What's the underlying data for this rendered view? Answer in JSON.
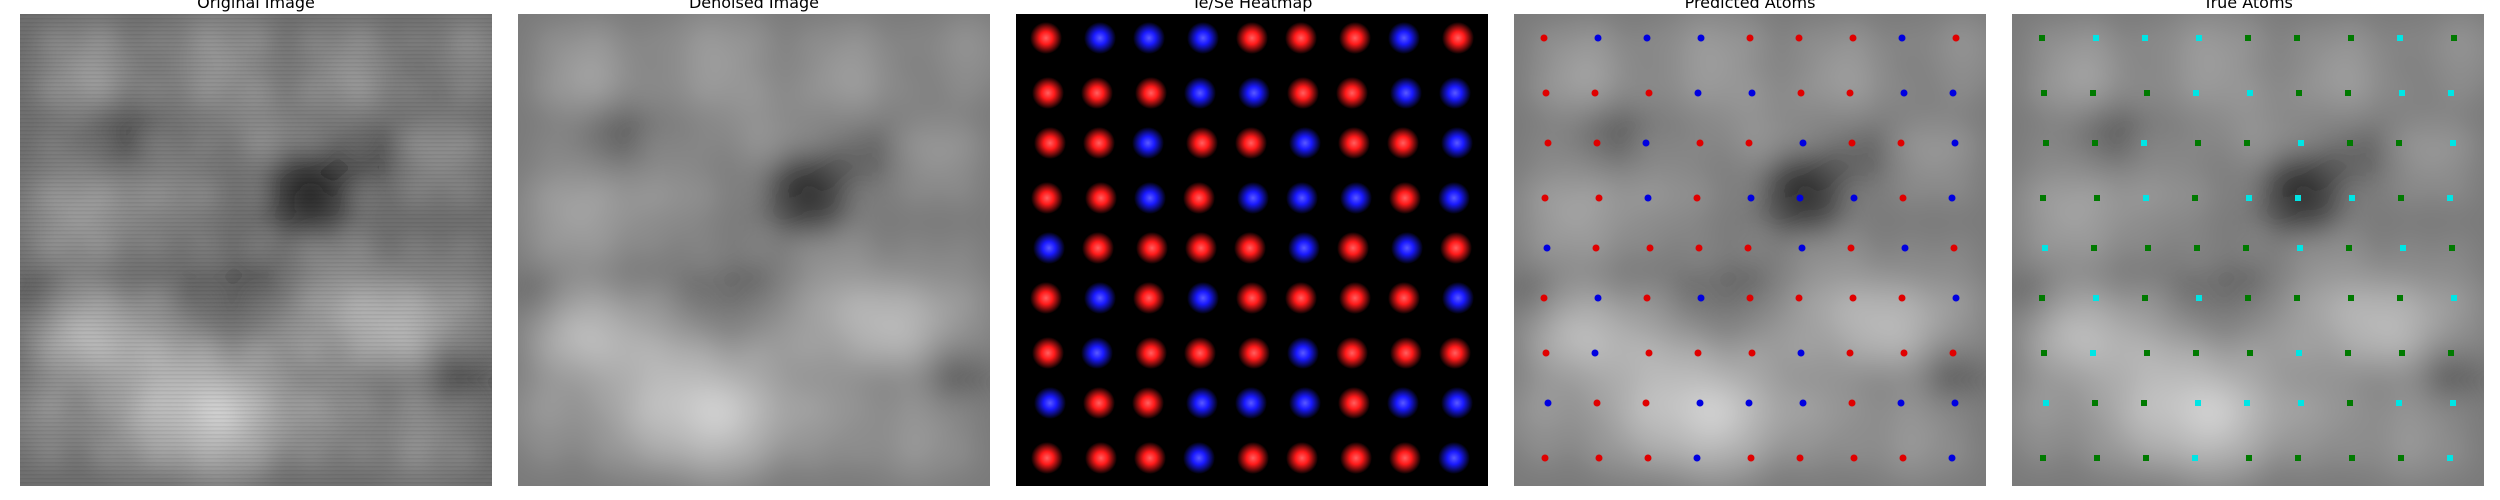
{
  "panels": [
    {
      "title": "Original Image"
    },
    {
      "title": "Denoised Image"
    },
    {
      "title": "Te/Se Heatmap"
    },
    {
      "title": "Predicted Atoms"
    },
    {
      "title": "True Atoms"
    }
  ],
  "colors": {
    "te_heatmap": "#ff1a1a",
    "se_heatmap": "#1a1aff",
    "predicted_te": "#e00000",
    "predicted_se": "#0000e0",
    "true_te": "#00e5e5",
    "true_se": "#007a00",
    "background_dark": "#000000"
  },
  "lattice": {
    "rows": [
      [
        "Te",
        "Se",
        "Se",
        "Se",
        "Te",
        "Te",
        "Te",
        "Se",
        "Te"
      ],
      [
        "Te",
        "Te",
        "Te",
        "Se",
        "Se",
        "Te",
        "Te",
        "Se",
        "Se"
      ],
      [
        "Te",
        "Te",
        "Se",
        "Te",
        "Te",
        "Se",
        "Te",
        "Te",
        "Se"
      ],
      [
        "Te",
        "Te",
        "Se",
        "Te",
        "Se",
        "Se",
        "Se",
        "Te",
        "Se"
      ],
      [
        "Se",
        "Te",
        "Te",
        "Te",
        "Te",
        "Se",
        "Te",
        "Se",
        "Te"
      ],
      [
        "Te",
        "Se",
        "Te",
        "Se",
        "Te",
        "Te",
        "Te",
        "Te",
        "Se"
      ],
      [
        "Te",
        "Se",
        "Te",
        "Te",
        "Te",
        "Se",
        "Te",
        "Te",
        "Te"
      ],
      [
        "Se",
        "Te",
        "Te",
        "Se",
        "Se",
        "Se",
        "Te",
        "Se",
        "Se"
      ],
      [
        "Te",
        "Te",
        "Te",
        "Se",
        "Te",
        "Te",
        "Te",
        "Te",
        "Se"
      ]
    ]
  }
}
